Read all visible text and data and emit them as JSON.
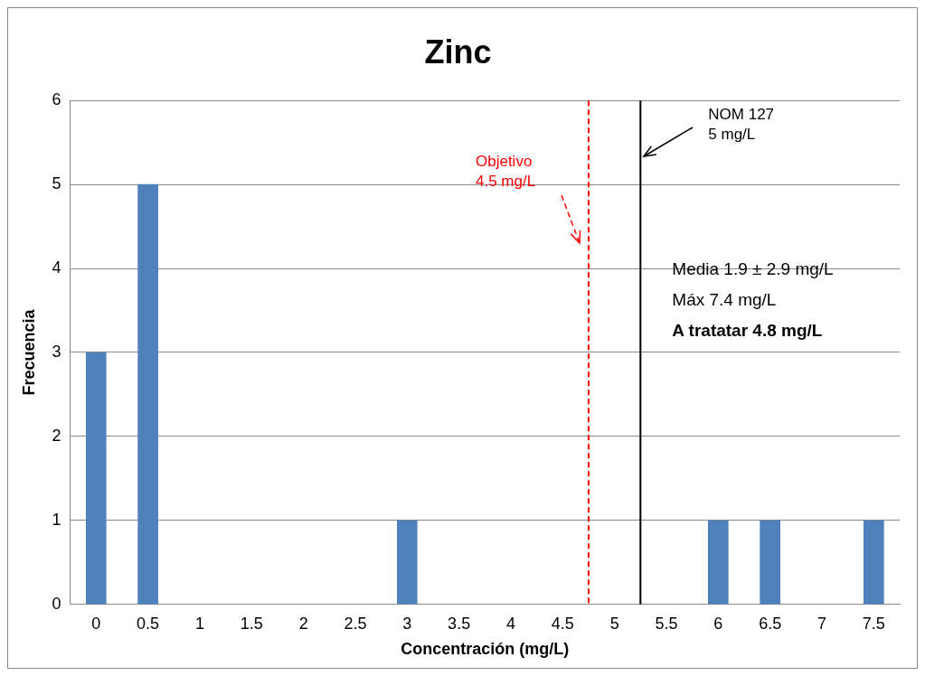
{
  "chart_data": {
    "type": "bar",
    "title": "Zinc",
    "xlabel": "Concentración (mg/L)",
    "ylabel": "Frecuencia",
    "x": [
      0,
      0.5,
      3,
      6,
      6.5,
      7.5
    ],
    "values": [
      3,
      5,
      1,
      1,
      1,
      1
    ],
    "color": "#4f81bd",
    "xlim": [
      -0.25,
      7.75
    ],
    "xticks": [
      0,
      0.5,
      1,
      1.5,
      2,
      2.5,
      3,
      3.5,
      4,
      4.5,
      5,
      5.5,
      6,
      6.5,
      7,
      7.5
    ],
    "ylim": [
      0,
      6
    ],
    "yticks": [
      0,
      1,
      2,
      3,
      4,
      5,
      6
    ],
    "grid": "y",
    "legend": false,
    "ref_lines": [
      {
        "axis": "x",
        "value": 4.75,
        "label": "Objetivo\n4.5 mg/L",
        "color": "#ff0000",
        "line_style": "dashed"
      },
      {
        "axis": "x",
        "value": 5.25,
        "label": "NOM 127\n5 mg/L",
        "color": "#000000",
        "line_style": "solid"
      }
    ],
    "annotations": [
      "Media 1.9 ± 2.9 mg/L",
      "Máx 7.4 mg/L",
      "A tratatar 4.8 mg/L"
    ]
  }
}
